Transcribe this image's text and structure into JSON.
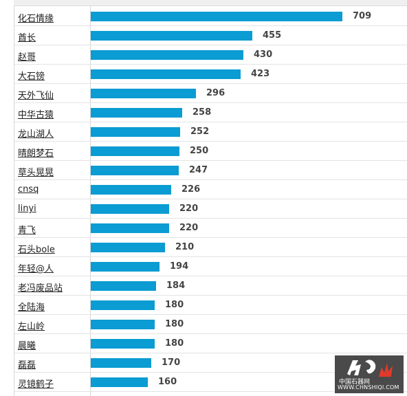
{
  "chart_data": {
    "type": "bar",
    "orientation": "horizontal",
    "bar_color": "#0a9cd2",
    "categories": [
      "化石情缘",
      "酋长",
      "赵哥",
      "大石镑",
      "天外飞仙",
      "中华古猿",
      "龙山湖人",
      "晴朗梦石",
      "草头晃晃",
      "cnsq",
      "linyi",
      "青飞",
      "石头bole",
      "年轻@人",
      "老冯废品站",
      "全陆海",
      "左山岭",
      "晨曦",
      "磊磊",
      "灵镜鹤子"
    ],
    "values": [
      709,
      455,
      430,
      423,
      296,
      258,
      252,
      250,
      247,
      226,
      220,
      220,
      210,
      194,
      184,
      180,
      180,
      180,
      170,
      160
    ],
    "xlim": [
      0,
      709
    ]
  },
  "watermark": {
    "site_name": "中国石器网",
    "url": "WWW.CHNSHIQI.COM"
  }
}
